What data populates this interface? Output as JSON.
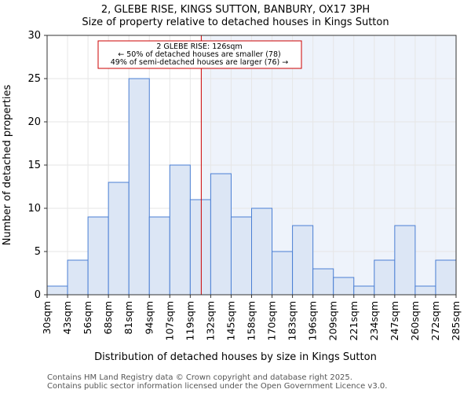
{
  "chart_data": {
    "type": "bar",
    "title": "2, GLEBE RISE, KINGS SUTTON, BANBURY, OX17 3PH",
    "subtitle": "Size of property relative to detached houses in Kings Sutton",
    "xlabel": "Distribution of detached houses by size in Kings Sutton",
    "ylabel": "Number of detached properties",
    "tick_labels": [
      "30sqm",
      "43sqm",
      "56sqm",
      "68sqm",
      "81sqm",
      "94sqm",
      "107sqm",
      "119sqm",
      "132sqm",
      "145sqm",
      "158sqm",
      "170sqm",
      "183sqm",
      "196sqm",
      "209sqm",
      "221sqm",
      "234sqm",
      "247sqm",
      "260sqm",
      "272sqm",
      "285sqm"
    ],
    "bin_edges": [
      30,
      43,
      56,
      68,
      81,
      94,
      107,
      119,
      132,
      145,
      158,
      170,
      183,
      196,
      209,
      221,
      234,
      247,
      260,
      272,
      285
    ],
    "values": [
      1,
      4,
      9,
      13,
      25,
      9,
      15,
      11,
      14,
      9,
      10,
      5,
      8,
      3,
      2,
      1,
      4,
      8,
      1,
      4
    ],
    "ylim": [
      0,
      30
    ],
    "yticks": [
      0,
      5,
      10,
      15,
      20,
      25,
      30
    ],
    "grid": true,
    "marker_value": 126,
    "annotation": {
      "line1": "2 GLEBE RISE: 126sqm",
      "line2": "← 50% of detached houses are smaller (78)",
      "line3": "49% of semi-detached houses are larger (76) →"
    },
    "colors": {
      "bar_fill": "#dce6f5",
      "bar_edge": "#4a7fd4",
      "marker": "#cc0000",
      "shade": "#eef3fb"
    }
  },
  "footer": {
    "line1": "Contains HM Land Registry data © Crown copyright and database right 2025.",
    "line2": "Contains public sector information licensed under the Open Government Licence v3.0."
  }
}
